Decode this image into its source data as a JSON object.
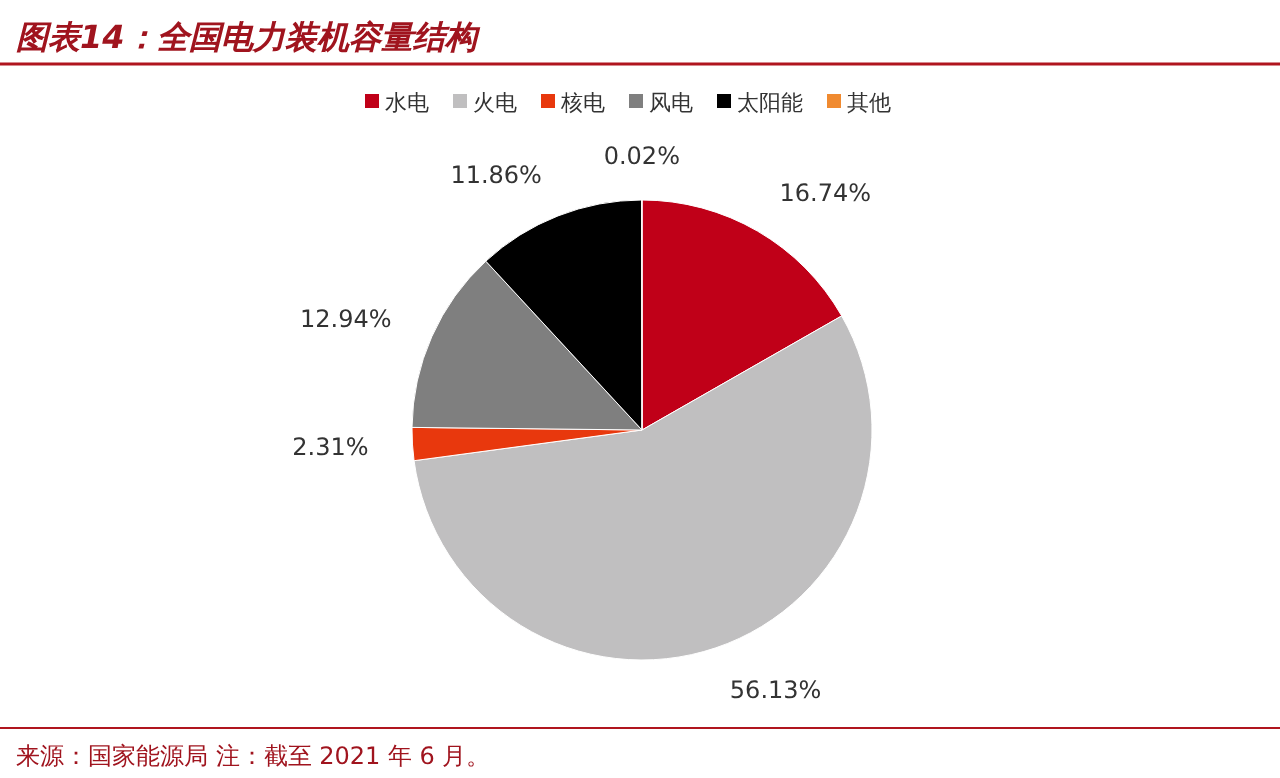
{
  "chart_data": {
    "type": "pie",
    "title": "图表14：全国电力装机容量结构",
    "categories": [
      "水电",
      "火电",
      "核电",
      "风电",
      "太阳能",
      "其他"
    ],
    "values": [
      16.74,
      56.13,
      2.31,
      12.94,
      11.86,
      0.02
    ],
    "colors": [
      "#c00018",
      "#c0bfc0",
      "#e8380d",
      "#7f7f7f",
      "#000000",
      "#f08a30"
    ],
    "value_labels": [
      "16.74%",
      "56.13%",
      "2.31%",
      "12.94%",
      "11.86%",
      "0.02%"
    ],
    "legend": "top",
    "annotations": [
      "来源：国家能源局 注：截至 2021 年 6 月。"
    ]
  }
}
